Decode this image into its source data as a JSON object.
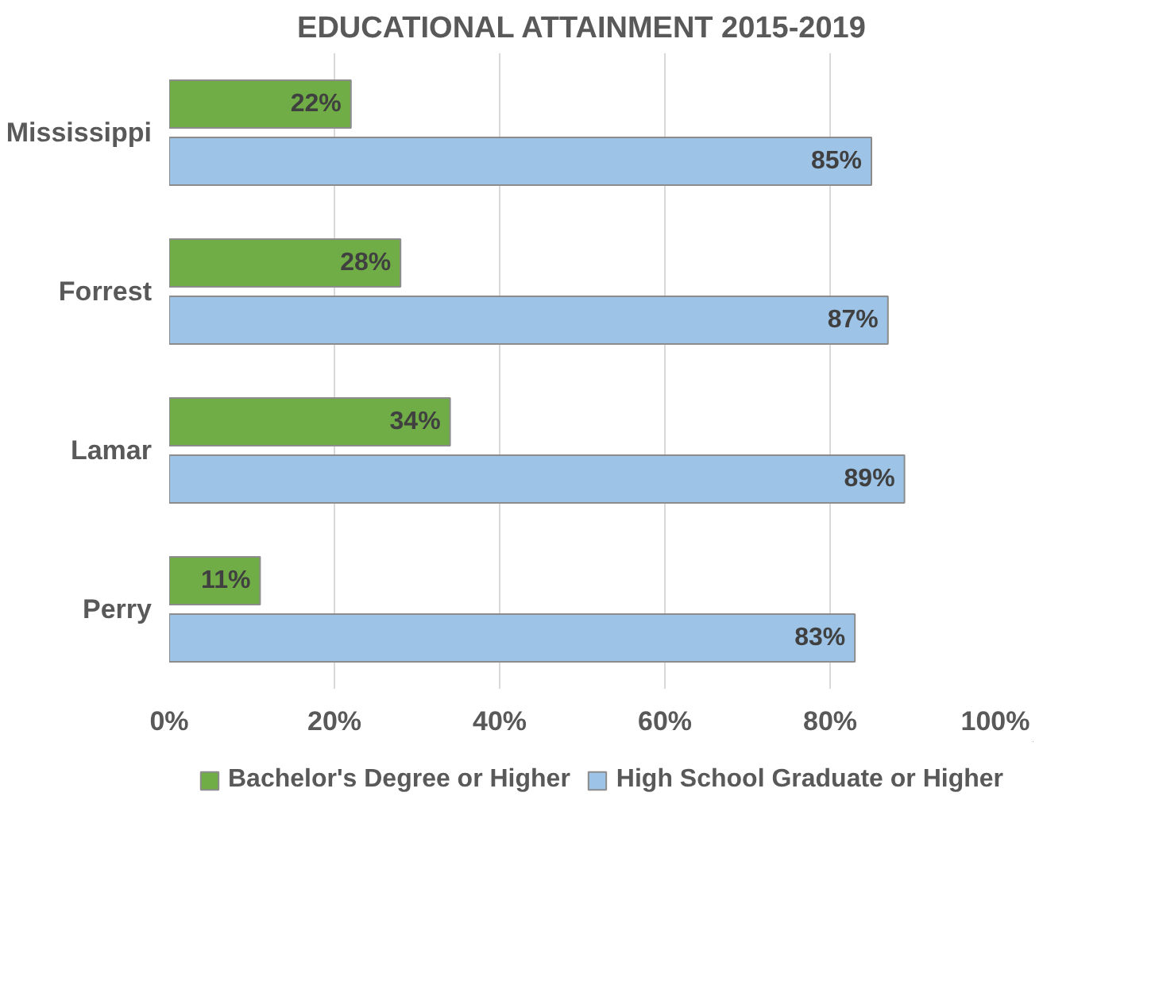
{
  "chart_data": {
    "type": "bar",
    "orientation": "horizontal",
    "title": "EDUCATIONAL ATTAINMENT 2015-2019",
    "categories": [
      "Mississippi",
      "Forrest",
      "Lamar",
      "Perry"
    ],
    "series": [
      {
        "name": "Bachelor's Degree or Higher",
        "color": "#70ad47",
        "values": [
          22,
          28,
          34,
          11
        ],
        "value_labels": [
          "22%",
          "28%",
          "34%",
          "11%"
        ]
      },
      {
        "name": "High School Graduate or Higher",
        "color": "#9dc3e6",
        "values": [
          85,
          87,
          89,
          83
        ],
        "value_labels": [
          "85%",
          "87%",
          "89%",
          "83%"
        ]
      }
    ],
    "xlim": [
      0,
      100
    ],
    "xticks": [
      {
        "value": 0,
        "label": "0%"
      },
      {
        "value": 20,
        "label": "20%"
      },
      {
        "value": 40,
        "label": "40%"
      },
      {
        "value": 60,
        "label": "60%"
      },
      {
        "value": 80,
        "label": "80%"
      },
      {
        "value": 100,
        "label": "100%"
      }
    ],
    "grid": "x",
    "legend": "bottom"
  }
}
